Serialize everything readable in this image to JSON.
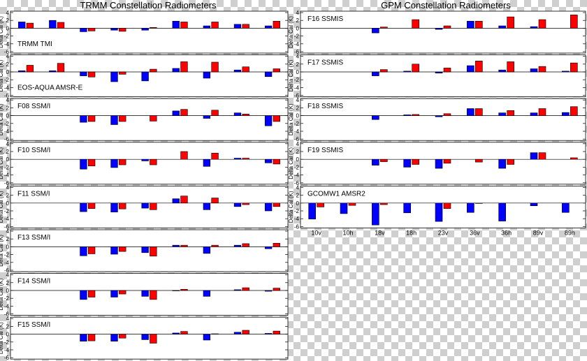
{
  "titles": {
    "left": "TRMM Constellation Radiometers",
    "right": "GPM Constellation Radiometers"
  },
  "chart_data": {
    "type": "bar",
    "categories": [
      "10v",
      "10h",
      "18v",
      "18h",
      "23v",
      "36v",
      "36h",
      "89v",
      "89h"
    ],
    "ylabel": "Delta Cal (K)",
    "ylim": [
      -6,
      4
    ],
    "yticks": [
      -6,
      -4,
      -2,
      0,
      2,
      4
    ],
    "colors": {
      "series1": "#0000ff",
      "series2": "#ff0000"
    },
    "grid": false,
    "panels": [
      {
        "column": "left",
        "label": "TRMM TMI",
        "blue": [
          1.6,
          2.0,
          -0.9,
          -0.5,
          -0.5,
          1.8,
          0.6,
          1.0,
          0.6
        ],
        "red": [
          1.3,
          1.5,
          -0.7,
          -0.8,
          0.2,
          1.6,
          1.6,
          1.0,
          1.8
        ]
      },
      {
        "column": "left",
        "label": "EOS-AQUA AMSR-E",
        "blue": [
          0.3,
          0.3,
          -1.0,
          -2.5,
          -2.3,
          0.9,
          -1.6,
          0.5,
          -1.2
        ],
        "red": [
          1.7,
          2.2,
          -1.3,
          -0.6,
          0.7,
          2.6,
          2.5,
          1.3,
          0.8
        ]
      },
      {
        "column": "left",
        "label": "F08 SSM/I",
        "blue": [
          0.0,
          0.0,
          -1.7,
          -2.3,
          0.0,
          1.2,
          -0.7,
          0.7,
          -2.6
        ],
        "red": [
          0.0,
          0.0,
          -1.5,
          -1.5,
          -1.4,
          1.6,
          1.4,
          0.4,
          -1.5
        ]
      },
      {
        "column": "left",
        "label": "F10 SSM/I",
        "blue": [
          0.0,
          0.0,
          -2.5,
          -2.1,
          -0.4,
          0.0,
          -1.8,
          0.3,
          -0.9
        ],
        "red": [
          0.0,
          0.0,
          -1.7,
          -1.4,
          -1.4,
          2.0,
          1.6,
          0.3,
          -1.2
        ]
      },
      {
        "column": "left",
        "label": "F11 SSM/I",
        "blue": [
          0.0,
          0.0,
          -2.2,
          -2.3,
          -1.3,
          1.1,
          -1.7,
          -0.9,
          -2.0
        ],
        "red": [
          0.0,
          0.0,
          -1.4,
          -1.5,
          -1.7,
          1.8,
          1.3,
          -0.4,
          -0.9
        ]
      },
      {
        "column": "left",
        "label": "F13 SSM/I",
        "blue": [
          0.0,
          0.0,
          -2.3,
          -1.9,
          -1.5,
          0.4,
          -1.7,
          0.4,
          -0.5
        ],
        "red": [
          0.0,
          0.0,
          -1.8,
          -1.2,
          -2.4,
          0.4,
          0.4,
          0.8,
          0.9
        ]
      },
      {
        "column": "left",
        "label": "F14 SSM/I",
        "blue": [
          0.0,
          0.0,
          -2.3,
          -1.7,
          -1.5,
          -0.1,
          -1.5,
          0.2,
          -0.2
        ],
        "red": [
          0.0,
          0.0,
          -1.7,
          -0.9,
          -2.3,
          0.3,
          0.0,
          0.7,
          0.6
        ]
      },
      {
        "column": "left",
        "label": "F15 SSM/I",
        "blue": [
          0.0,
          0.0,
          -1.8,
          -1.8,
          -1.4,
          0.3,
          -1.5,
          0.5,
          0.2
        ],
        "red": [
          0.0,
          0.0,
          -1.7,
          -1.0,
          -2.3,
          0.7,
          0.1,
          1.0,
          0.8
        ]
      },
      {
        "column": "right",
        "label": "F16 SSMIS",
        "blue": [
          0.0,
          0.0,
          -1.2,
          0.0,
          -0.3,
          1.8,
          0.6,
          0.4,
          0.0
        ],
        "red": [
          0.0,
          0.0,
          0.3,
          2.2,
          0.6,
          1.8,
          2.9,
          2.2,
          3.4
        ]
      },
      {
        "column": "right",
        "label": "F17 SSMIS",
        "blue": [
          0.0,
          0.0,
          -1.0,
          0.2,
          -0.3,
          1.6,
          0.5,
          0.8,
          0.2
        ],
        "red": [
          0.0,
          0.0,
          0.6,
          2.0,
          1.0,
          2.8,
          2.6,
          1.4,
          2.3
        ]
      },
      {
        "column": "right",
        "label": "F18 SSMIS",
        "blue": [
          0.0,
          0.0,
          -1.0,
          0.2,
          -0.3,
          1.8,
          0.7,
          0.7,
          0.8
        ],
        "red": [
          0.0,
          0.0,
          0.0,
          0.3,
          0.5,
          1.8,
          1.3,
          1.8,
          2.3
        ]
      },
      {
        "column": "right",
        "label": "F19 SSMIS",
        "blue": [
          0.0,
          0.0,
          -1.5,
          -2.0,
          -2.3,
          0.0,
          -2.3,
          1.7,
          0.0
        ],
        "red": [
          0.0,
          0.0,
          -0.6,
          -1.3,
          -1.0,
          -0.7,
          -1.3,
          1.7,
          0.4
        ]
      },
      {
        "column": "right",
        "label": "GCOMW1 AMSR2",
        "blue": [
          -4.1,
          -2.7,
          -5.6,
          -2.5,
          -4.7,
          -2.4,
          -4.6,
          -0.7,
          -2.4
        ],
        "red": [
          -1.0,
          -0.6,
          -0.4,
          0.0,
          -1.4,
          -0.1,
          0.0,
          0.0,
          0.0
        ]
      }
    ]
  }
}
